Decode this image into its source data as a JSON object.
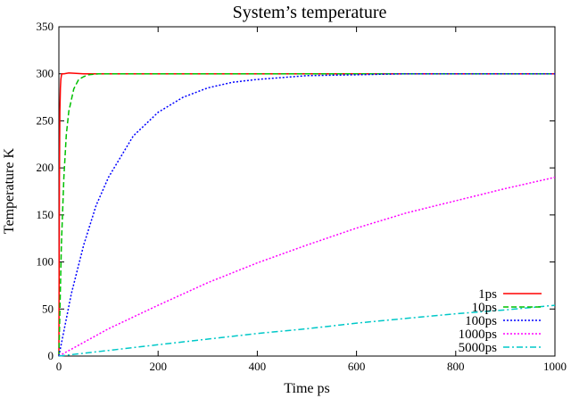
{
  "chart_data": {
    "type": "line",
    "title": "System’s temperature",
    "xlabel": "Time ps",
    "ylabel": "Temperature K",
    "xlim": [
      0,
      1000
    ],
    "ylim": [
      0,
      350
    ],
    "xticks": [
      0,
      200,
      400,
      600,
      800,
      1000
    ],
    "yticks": [
      0,
      50,
      100,
      150,
      200,
      250,
      300,
      350
    ],
    "grid": false,
    "legend_position": "bottom-right",
    "series": [
      {
        "name": "1ps",
        "color": "#ff0000",
        "style": "solid",
        "x": [
          0,
          1,
          2,
          3,
          4,
          5,
          6,
          8,
          10,
          20,
          50,
          100,
          200,
          300,
          400,
          500,
          600,
          700,
          800,
          900,
          1000
        ],
        "y": [
          0,
          190,
          260,
          285,
          294,
          298,
          300,
          300,
          300,
          301,
          300,
          300,
          300,
          300,
          300,
          300,
          300,
          300,
          300,
          300,
          300
        ]
      },
      {
        "name": "10ps",
        "color": "#00c000",
        "style": "dashed",
        "x": [
          0,
          5,
          10,
          15,
          20,
          30,
          40,
          50,
          60,
          80,
          100,
          150,
          200,
          300,
          400,
          500,
          600,
          700,
          800,
          900,
          1000
        ],
        "y": [
          0,
          118,
          190,
          235,
          260,
          284,
          294,
          297,
          299,
          300,
          300,
          300,
          300,
          300,
          300,
          300,
          300,
          300,
          300,
          300,
          300
        ]
      },
      {
        "name": "100ps",
        "color": "#0000ff",
        "style": "dotted",
        "x": [
          0,
          25,
          50,
          75,
          100,
          150,
          200,
          250,
          300,
          350,
          400,
          450,
          500,
          600,
          700,
          800,
          900,
          1000
        ],
        "y": [
          0,
          66,
          118,
          160,
          190,
          234,
          259,
          275,
          285,
          291,
          294,
          296,
          298,
          299,
          300,
          300,
          300,
          300
        ]
      },
      {
        "name": "1000ps",
        "color": "#ff00ff",
        "style": "dotted",
        "x": [
          0,
          100,
          200,
          300,
          400,
          500,
          600,
          700,
          800,
          900,
          1000
        ],
        "y": [
          0,
          29,
          54,
          78,
          99,
          118,
          136,
          152,
          165,
          178,
          190
        ]
      },
      {
        "name": "5000ps",
        "color": "#00c8c8",
        "style": "dashdot",
        "x": [
          0,
          100,
          200,
          300,
          400,
          500,
          600,
          700,
          800,
          900,
          1000
        ],
        "y": [
          0,
          6,
          12,
          18,
          24,
          29,
          35,
          40,
          45,
          49,
          54
        ]
      }
    ]
  }
}
